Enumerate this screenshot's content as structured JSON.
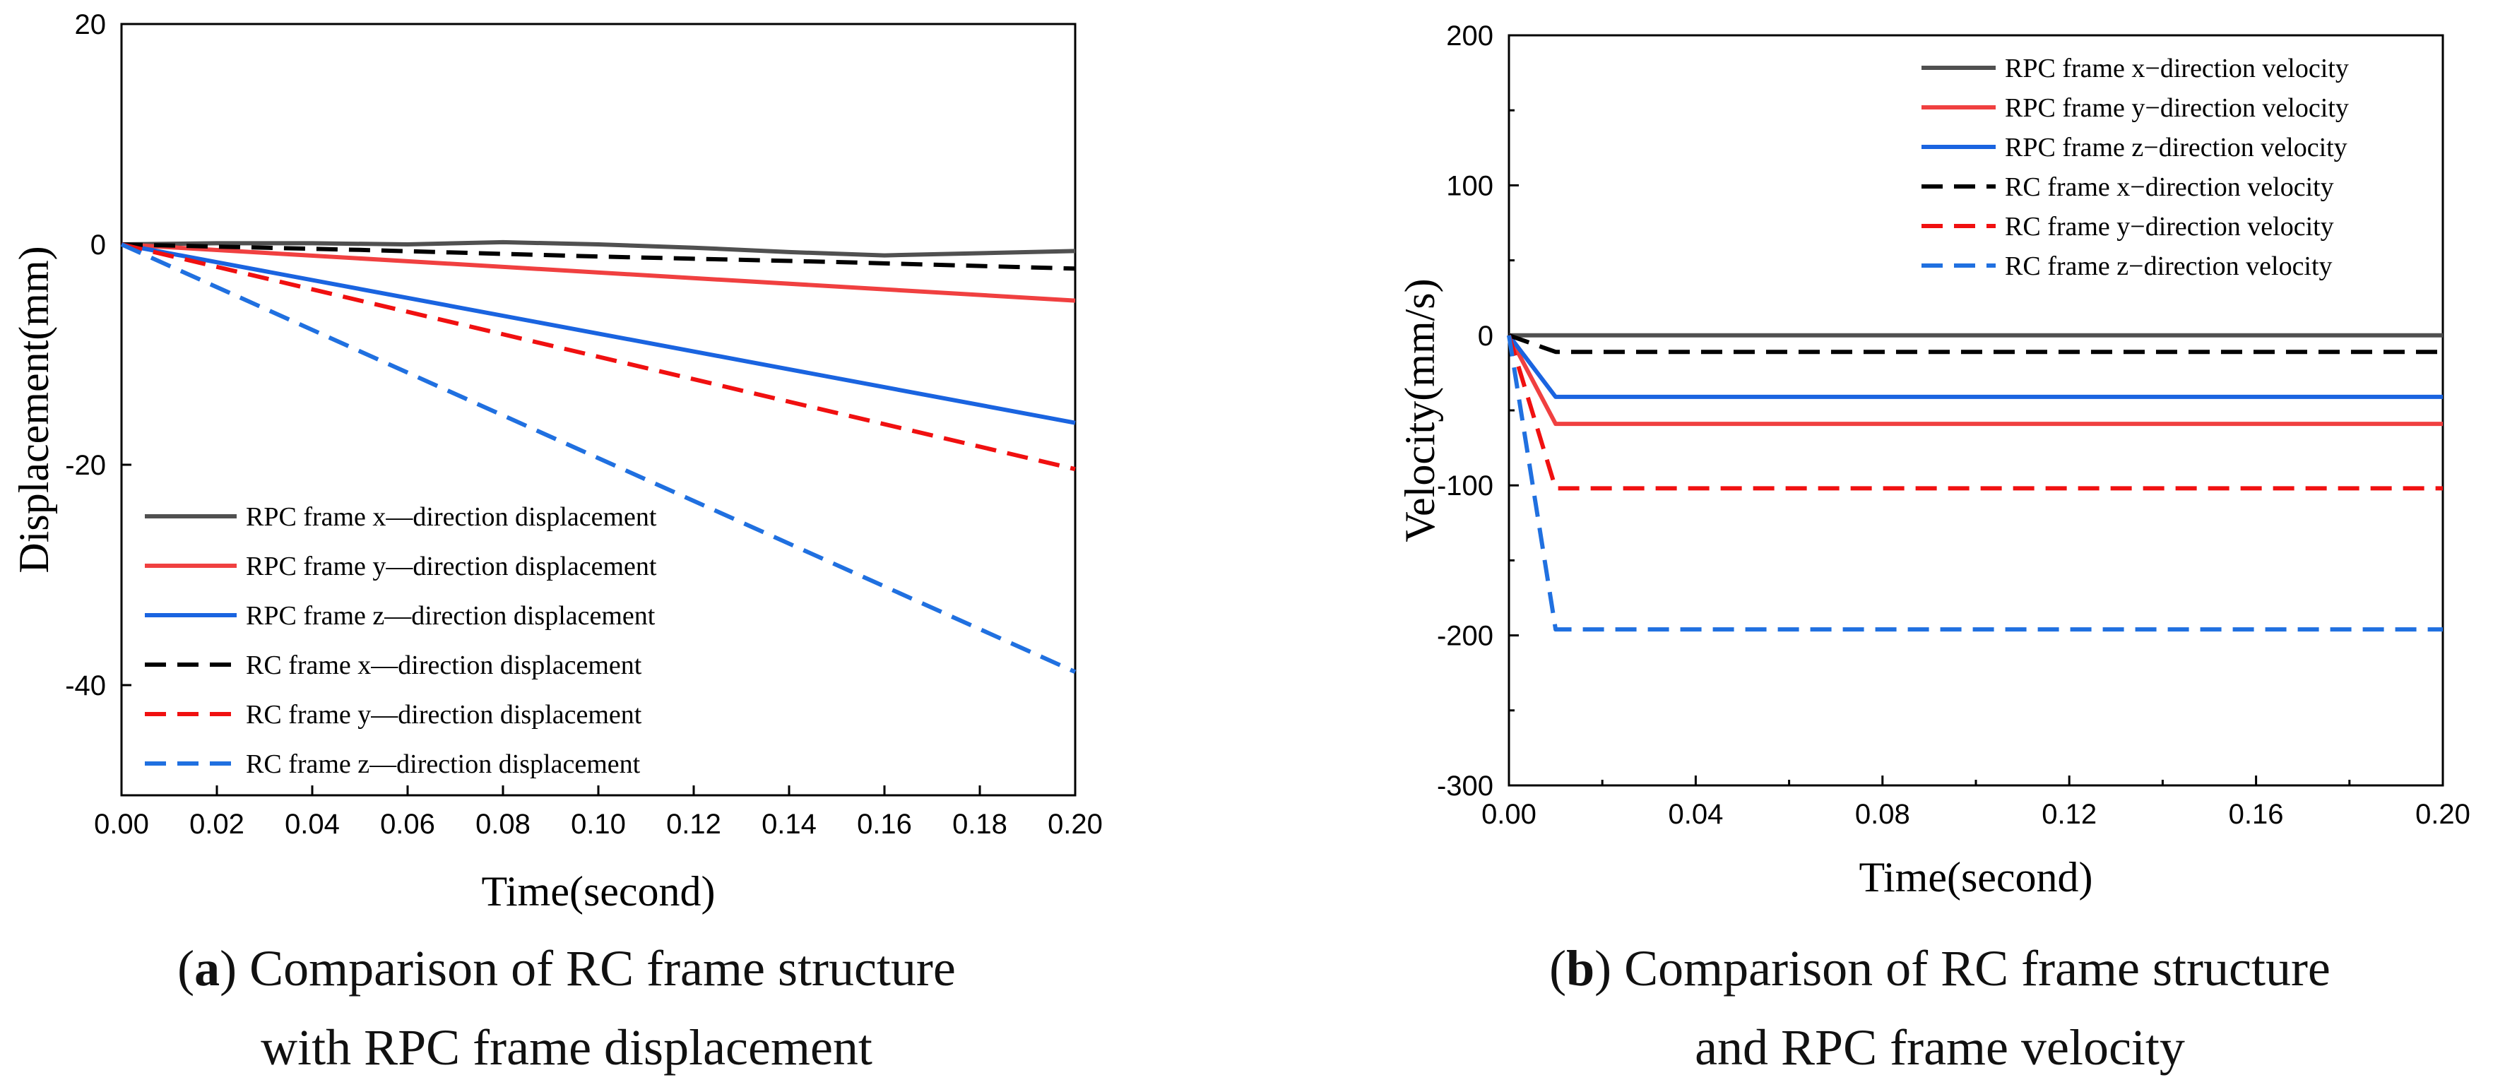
{
  "chart_data": [
    {
      "type": "line",
      "panel": "a",
      "title": "",
      "xlabel": "Time(second)",
      "ylabel": "Displacement(mm)",
      "xlim": [
        0,
        0.2
      ],
      "ylim": [
        -50,
        20
      ],
      "xticks": [
        "0.00",
        "0.02",
        "0.04",
        "0.06",
        "0.08",
        "0.10",
        "0.12",
        "0.14",
        "0.16",
        "0.18",
        "0.20"
      ],
      "xtick_values": [
        0,
        0.02,
        0.04,
        0.06,
        0.08,
        0.1,
        0.12,
        0.14,
        0.16,
        0.18,
        0.2
      ],
      "yticks": [
        "20",
        "0",
        "-20",
        "-40"
      ],
      "ytick_values": [
        20,
        0,
        -20,
        -40
      ],
      "legend_position": "bottom-left",
      "series": [
        {
          "name": "RPC frame x—direction displacement",
          "color": "#505050",
          "dash": "solid",
          "x": [
            0,
            0.02,
            0.04,
            0.06,
            0.08,
            0.1,
            0.12,
            0.14,
            0.16,
            0.18,
            0.2
          ],
          "y": [
            0,
            0.1,
            0.1,
            0.0,
            0.2,
            0.0,
            -0.3,
            -0.7,
            -1.0,
            -0.8,
            -0.6
          ]
        },
        {
          "name": "RPC frame y—direction displacement",
          "color": "#f04040",
          "dash": "solid",
          "x": [
            0,
            0.2
          ],
          "y": [
            0,
            -5.1
          ]
        },
        {
          "name": "RPC frame z—direction displacement",
          "color": "#1a64e0",
          "dash": "solid",
          "x": [
            0,
            0.2
          ],
          "y": [
            0,
            -16.2
          ]
        },
        {
          "name": "RC frame x—direction displacement",
          "color": "#000000",
          "dash": "dashed",
          "x": [
            0,
            0.05,
            0.1,
            0.15,
            0.2
          ],
          "y": [
            0,
            -0.5,
            -1.1,
            -1.6,
            -2.2
          ]
        },
        {
          "name": "RC frame y—direction displacement",
          "color": "#f01010",
          "dash": "dashed",
          "x": [
            0,
            0.2
          ],
          "y": [
            0,
            -20.4
          ]
        },
        {
          "name": "RC frame z—direction displacement",
          "color": "#2070e0",
          "dash": "dashed",
          "x": [
            0,
            0.2
          ],
          "y": [
            0,
            -38.8
          ]
        }
      ]
    },
    {
      "type": "line",
      "panel": "b",
      "title": "",
      "xlabel": "Time(second)",
      "ylabel": "Velocity(mm/s)",
      "xlim": [
        0,
        0.2
      ],
      "ylim": [
        -300,
        200
      ],
      "xticks": [
        "0.00",
        "0.04",
        "0.08",
        "0.12",
        "0.16",
        "0.20"
      ],
      "xtick_values": [
        0,
        0.04,
        0.08,
        0.12,
        0.16,
        0.2
      ],
      "yticks": [
        "200",
        "100",
        "0",
        "-100",
        "-200",
        "-300"
      ],
      "ytick_values": [
        200,
        100,
        0,
        -100,
        -200,
        -300
      ],
      "legend_position": "top-right",
      "series": [
        {
          "name": "RPC frame x−direction velocity",
          "color": "#505050",
          "dash": "solid",
          "x": [
            0,
            0.01,
            0.2
          ],
          "y": [
            0,
            0,
            0
          ]
        },
        {
          "name": "RPC frame y−direction velocity",
          "color": "#f04040",
          "dash": "solid",
          "x": [
            0,
            0.01,
            0.2
          ],
          "y": [
            0,
            -59,
            -59
          ]
        },
        {
          "name": "RPC frame z−direction velocity",
          "color": "#1a64e0",
          "dash": "solid",
          "x": [
            0,
            0.01,
            0.2
          ],
          "y": [
            0,
            -41,
            -41
          ]
        },
        {
          "name": "RC frame x−direction velocity",
          "color": "#000000",
          "dash": "dashed",
          "x": [
            0,
            0.01,
            0.2
          ],
          "y": [
            0,
            -11,
            -11
          ]
        },
        {
          "name": "RC frame y−direction velocity",
          "color": "#f01010",
          "dash": "dashed",
          "x": [
            0,
            0.01,
            0.2
          ],
          "y": [
            0,
            -102,
            -102
          ]
        },
        {
          "name": "RC frame z−direction velocity",
          "color": "#2070e0",
          "dash": "dashed",
          "x": [
            0,
            0.01,
            0.2
          ],
          "y": [
            0,
            -196,
            -196
          ]
        }
      ]
    }
  ],
  "captions": {
    "a": {
      "letter": "a",
      "line1": " Comparison of RC frame structure",
      "line2": "with RPC frame displacement"
    },
    "b": {
      "letter": "b",
      "line1": " Comparison of RC frame structure",
      "line2": "and RPC frame velocity"
    }
  }
}
